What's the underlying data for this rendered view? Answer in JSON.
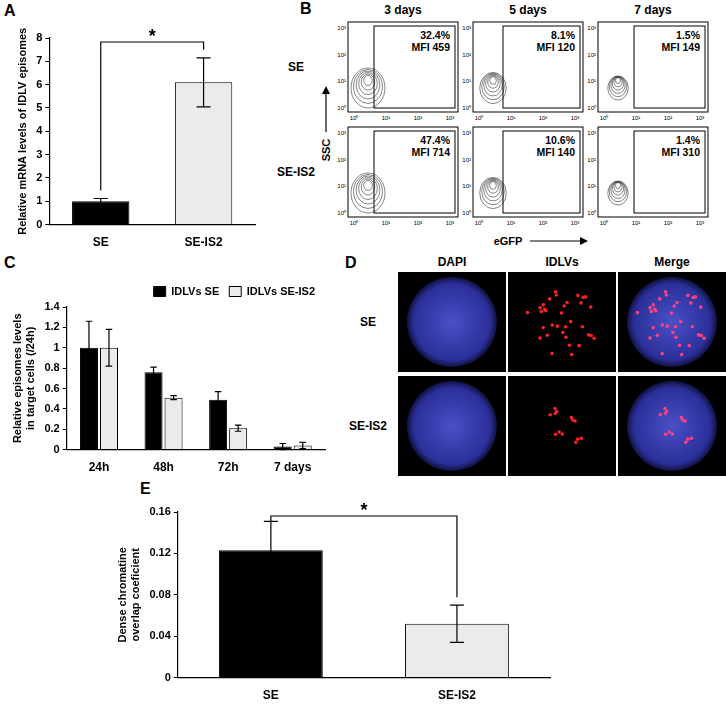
{
  "panel_labels": [
    "A",
    "B",
    "C",
    "D",
    "E"
  ],
  "chart_data": [
    {
      "type": "bar",
      "categories": [
        "SE",
        "SE-IS2"
      ],
      "values": [
        1.0,
        6.1
      ],
      "errors": [
        0.12,
        1.05
      ],
      "colors": [
        "#000000",
        "#ebebeb"
      ],
      "ylabel": "Relative mRNA levels of IDLV episomes",
      "ylim": [
        0,
        8
      ],
      "yticks": [
        0,
        1,
        2,
        3,
        4,
        5,
        6,
        7,
        8
      ],
      "grid": false,
      "annotations": [
        {
          "text": "*",
          "between": [
            "SE",
            "SE-IS2"
          ]
        }
      ]
    },
    {
      "type": "bar",
      "categories": [
        "24h",
        "48h",
        "72h",
        "7 days"
      ],
      "series": [
        {
          "name": "IDLVs SE",
          "color": "#000000",
          "values": [
            1.0,
            0.76,
            0.49,
            0.03
          ],
          "errors": [
            0.26,
            0.05,
            0.08,
            0.03
          ]
        },
        {
          "name": "IDLVs SE-IS2",
          "color": "#ebebeb",
          "values": [
            1.0,
            0.51,
            0.21,
            0.04
          ],
          "errors": [
            0.18,
            0.02,
            0.03,
            0.03
          ]
        }
      ],
      "ylabel": "Relative episomes levels in target cells (/24h)",
      "ylim": [
        0,
        1.4
      ],
      "yticks": [
        0,
        0.2,
        0.4,
        0.6,
        0.8,
        1,
        1.2,
        1.4
      ],
      "grid": false,
      "legend": "top right"
    },
    {
      "type": "bar",
      "categories": [
        "SE",
        "SE-IS2"
      ],
      "values": [
        0.123,
        0.052
      ],
      "errors": [
        0.028,
        0.018
      ],
      "colors": [
        "#000000",
        "#ebebeb"
      ],
      "ylabel": "Dense chromatine overlap coeficient",
      "ylim": [
        0,
        0.16
      ],
      "yticks": [
        0,
        0.04,
        0.08,
        0.12,
        0.16
      ],
      "grid": false,
      "annotations": [
        {
          "text": "*",
          "between": [
            "SE",
            "SE-IS2"
          ]
        }
      ]
    }
  ],
  "flow_cytometry": {
    "columns": [
      "3 days",
      "5 days",
      "7 days"
    ],
    "rows": [
      "SE",
      "SE-IS2"
    ],
    "xlabel": "eGFP",
    "ylabel": "SSC",
    "axis_ticks": [
      "10⁰",
      "10¹",
      "10²",
      "10³"
    ],
    "gates": [
      [
        {
          "percent": "32.4%",
          "mfi": "MFI 459"
        },
        {
          "percent": "8.1%",
          "mfi": "MFI 120"
        },
        {
          "percent": "1.5%",
          "mfi": "MFI 149"
        }
      ],
      [
        {
          "percent": "47.4%",
          "mfi": "MFI 714"
        },
        {
          "percent": "10.6%",
          "mfi": "MFI 140"
        },
        {
          "percent": "1.4%",
          "mfi": "MFI 310"
        }
      ]
    ]
  },
  "microscopy": {
    "columns": [
      "DAPI",
      "IDLVs",
      "Merge"
    ],
    "rows": [
      "SE",
      "SE-IS2"
    ]
  }
}
